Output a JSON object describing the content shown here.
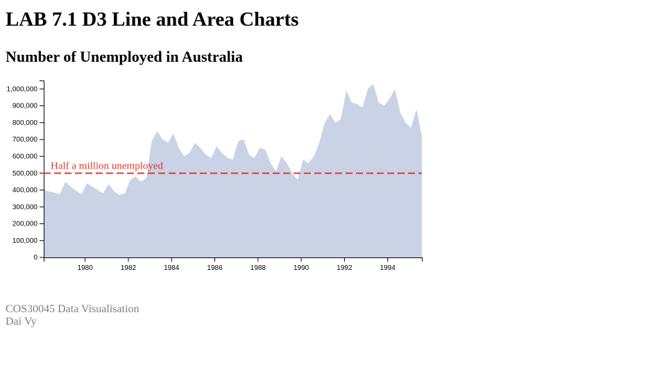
{
  "page": {
    "title": "LAB 7.1 D3 Line and Area Charts",
    "subtitle": "Number of Unemployed in Australia",
    "footer_course": "COS30045 Data Visualisation",
    "footer_author": "Dai Vy"
  },
  "colors": {
    "area": "#c9d3e5",
    "threshold": "#e03a2d",
    "axis": "#000000"
  },
  "chart_data": {
    "type": "area",
    "title": "Number of Unemployed in Australia",
    "xlabel": "",
    "ylabel": "",
    "xlim": [
      "1978-02",
      "1995-08"
    ],
    "ylim": [
      0,
      1050000
    ],
    "x_ticks": [
      "1980",
      "1982",
      "1984",
      "1986",
      "1988",
      "1990",
      "1992",
      "1994"
    ],
    "y_ticks": [
      "0",
      "100,000",
      "200,000",
      "300,000",
      "400,000",
      "500,000",
      "600,000",
      "700,000",
      "800,000",
      "900,000",
      "1,000,000"
    ],
    "grid": false,
    "threshold": {
      "value": 500000,
      "label": "Half a million unemployed"
    },
    "series": [
      {
        "x": [
          "1978-02",
          "1978-05",
          "1978-08",
          "1978-11",
          "1979-02",
          "1979-05",
          "1979-08",
          "1979-11",
          "1980-02",
          "1980-05",
          "1980-08",
          "1980-11",
          "1981-02",
          "1981-05",
          "1981-08",
          "1981-11",
          "1982-02",
          "1982-05",
          "1982-08",
          "1982-11",
          "1983-02",
          "1983-05",
          "1983-08",
          "1983-11",
          "1984-02",
          "1984-05",
          "1984-08",
          "1984-11",
          "1985-02",
          "1985-05",
          "1985-08",
          "1985-11",
          "1986-02",
          "1986-05",
          "1986-08",
          "1986-11",
          "1987-02",
          "1987-05",
          "1987-08",
          "1987-11",
          "1988-02",
          "1988-05",
          "1988-08",
          "1988-11",
          "1989-02",
          "1989-05",
          "1989-08",
          "1989-11",
          "1990-02",
          "1990-05",
          "1990-08",
          "1990-11",
          "1991-02",
          "1991-05",
          "1991-08",
          "1991-11",
          "1992-02",
          "1992-05",
          "1992-08",
          "1992-11",
          "1993-02",
          "1993-05",
          "1993-08",
          "1993-11",
          "1994-02",
          "1994-05",
          "1994-08",
          "1994-11",
          "1995-02",
          "1995-05",
          "1995-08"
        ],
        "values": [
          405000,
          390000,
          385000,
          375000,
          450000,
          420000,
          395000,
          375000,
          440000,
          420000,
          400000,
          380000,
          435000,
          395000,
          370000,
          380000,
          460000,
          480000,
          450000,
          470000,
          690000,
          750000,
          700000,
          680000,
          735000,
          650000,
          600000,
          620000,
          680000,
          650000,
          610000,
          590000,
          660000,
          620000,
          590000,
          580000,
          690000,
          700000,
          610000,
          590000,
          650000,
          640000,
          560000,
          510000,
          600000,
          560000,
          500000,
          460000,
          580000,
          560000,
          600000,
          680000,
          800000,
          850000,
          800000,
          820000,
          990000,
          920000,
          910000,
          890000,
          1000000,
          1030000,
          920000,
          900000,
          940000,
          1000000,
          860000,
          800000,
          770000,
          880000,
          720000
        ]
      }
    ]
  }
}
